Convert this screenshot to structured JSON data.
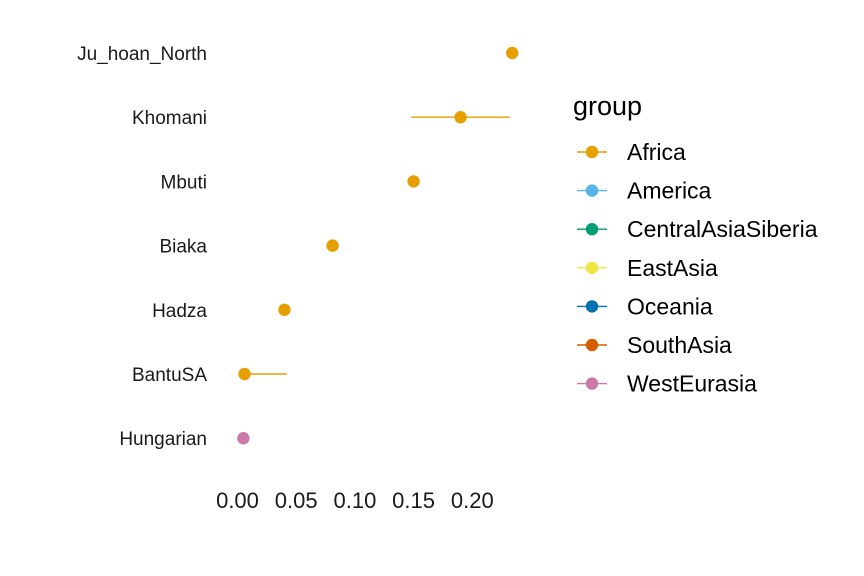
{
  "chart_data": {
    "type": "dot-errorbar",
    "title": "",
    "xlabel": "",
    "ylabel": "",
    "xlim": [
      -0.02,
      0.25
    ],
    "x_ticks": [
      {
        "value": 0.0,
        "label": "0.00"
      },
      {
        "value": 0.05,
        "label": "0.05"
      },
      {
        "value": 0.1,
        "label": "0.10"
      },
      {
        "value": 0.15,
        "label": "0.15"
      },
      {
        "value": 0.2,
        "label": "0.20"
      }
    ],
    "points": [
      {
        "label": "Ju_hoan_North",
        "group": "Africa",
        "value": 0.234,
        "lo": 0.234,
        "hi": 0.234
      },
      {
        "label": "Khomani",
        "group": "Africa",
        "value": 0.19,
        "lo": 0.148,
        "hi": 0.232
      },
      {
        "label": "Mbuti",
        "group": "Africa",
        "value": 0.15,
        "lo": 0.15,
        "hi": 0.15
      },
      {
        "label": "Biaka",
        "group": "Africa",
        "value": 0.081,
        "lo": 0.081,
        "hi": 0.081
      },
      {
        "label": "Hadza",
        "group": "Africa",
        "value": 0.04,
        "lo": 0.04,
        "hi": 0.04
      },
      {
        "label": "BantuSA",
        "group": "Africa",
        "value": 0.006,
        "lo": 0.003,
        "hi": 0.042
      },
      {
        "label": "Hungarian",
        "group": "WestEurasia",
        "value": 0.005,
        "lo": 0.005,
        "hi": 0.005
      }
    ],
    "legend": {
      "title": "group",
      "placement": "right",
      "entries": [
        {
          "name": "Africa",
          "color": "#E69F00"
        },
        {
          "name": "America",
          "color": "#56B4E9"
        },
        {
          "name": "CentralAsiaSiberia",
          "color": "#009E73"
        },
        {
          "name": "EastAsia",
          "color": "#F0E442"
        },
        {
          "name": "Oceania",
          "color": "#0072B2"
        },
        {
          "name": "SouthAsia",
          "color": "#D55E00"
        },
        {
          "name": "WestEurasia",
          "color": "#CC79A7"
        }
      ]
    },
    "grid": false
  }
}
